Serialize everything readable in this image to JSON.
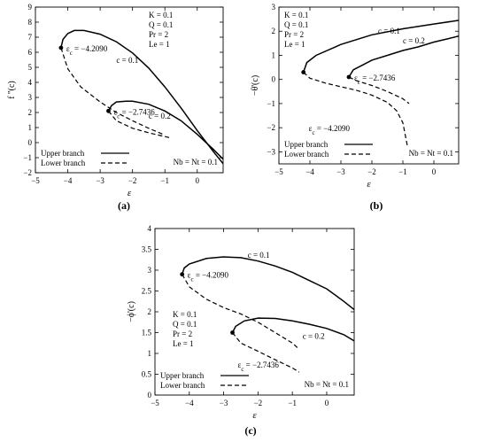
{
  "chart_data": [
    {
      "panel_label": "(a)",
      "type": "line",
      "xlabel": "ε",
      "ylabel": "f ''(c)",
      "xlim": [
        -5,
        0.8
      ],
      "ylim": [
        -2,
        9
      ],
      "xticks": [
        -5,
        -4,
        -3,
        -2,
        -1,
        0
      ],
      "yticks": [
        -2,
        -1,
        0,
        1,
        2,
        3,
        4,
        5,
        6,
        7,
        8,
        9
      ],
      "grid": false,
      "legend_position": "bottom-left",
      "legend": [
        {
          "label": "Upper branch",
          "style": "solid"
        },
        {
          "label": "Lower branch",
          "style": "dashed"
        }
      ],
      "params_text": [
        "K = 0.1",
        "Q = 0.1",
        "Pr = 2",
        "Le = 1"
      ],
      "corner_text": "Nb = Nt = 0.1",
      "annotations": [
        {
          "text": "ε_c = −4.2090",
          "x": -4.209,
          "y": 6.3
        },
        {
          "text": "ε_c = −2.7436",
          "x": -2.7436,
          "y": 2.1
        },
        {
          "text": "c = 0.1",
          "x": -2.5,
          "y": 5.3
        },
        {
          "text": "c = 0.2",
          "x": -1.5,
          "y": 1.6
        }
      ],
      "critical_points": [
        {
          "label": "ε_c = −4.2090",
          "x": -4.209,
          "y": 6.3
        },
        {
          "label": "ε_c = −2.7436",
          "x": -2.7436,
          "y": 2.1
        }
      ],
      "series": [
        {
          "style": "solid",
          "x": [
            -4.209,
            -4.15,
            -4.0,
            -3.8,
            -3.5,
            -3.0,
            -2.5,
            -2.0,
            -1.5,
            -1.0,
            -0.5,
            0.0,
            0.5,
            0.8
          ],
          "y": [
            6.3,
            6.85,
            7.25,
            7.45,
            7.45,
            7.2,
            6.7,
            5.95,
            4.95,
            3.7,
            2.3,
            0.8,
            -0.6,
            -1.4
          ]
        },
        {
          "style": "dashed",
          "x": [
            -4.209,
            -4.0,
            -3.6,
            -3.0,
            -2.5,
            -2.0,
            -1.5,
            -1.0
          ],
          "y": [
            6.3,
            4.9,
            3.7,
            2.7,
            2.0,
            1.45,
            0.95,
            0.5
          ]
        },
        {
          "style": "solid",
          "x": [
            -2.7436,
            -2.65,
            -2.5,
            -2.2,
            -2.0,
            -1.5,
            -1.0,
            -0.5,
            0.0,
            0.5,
            0.8
          ],
          "y": [
            2.1,
            2.45,
            2.7,
            2.75,
            2.75,
            2.55,
            2.1,
            1.45,
            0.55,
            -0.45,
            -1.1
          ]
        },
        {
          "style": "dashed",
          "x": [
            -2.7436,
            -2.5,
            -2.0,
            -1.5,
            -1.0,
            -0.8
          ],
          "y": [
            2.1,
            1.45,
            0.95,
            0.65,
            0.4,
            0.3
          ]
        }
      ]
    },
    {
      "panel_label": "(b)",
      "type": "line",
      "xlabel": "ε",
      "ylabel": "−θ'(c)",
      "xlim": [
        -5,
        0.8
      ],
      "ylim": [
        -3.5,
        3
      ],
      "xticks": [
        -5,
        -4,
        -3,
        -2,
        -1,
        0
      ],
      "yticks": [
        -3,
        -2,
        -1,
        0,
        1,
        2,
        3
      ],
      "grid": false,
      "legend_position": "bottom-left",
      "legend": [
        {
          "label": "Upper branch",
          "style": "solid"
        },
        {
          "label": "Lower branch",
          "style": "dashed"
        }
      ],
      "params_text": [
        "K = 0.1",
        "Q = 0.1",
        "Pr = 2",
        "Le = 1"
      ],
      "corner_text": "Nb = Nt = 0.1",
      "annotations": [
        {
          "text": "ε_c = −4.2090",
          "x": -4.209,
          "y": -2.0
        },
        {
          "text": "ε_c = −2.7436",
          "x": -2.7436,
          "y": 0.1
        },
        {
          "text": "c = 0.1",
          "x": -1.8,
          "y": 1.9
        },
        {
          "text": "c = 0.2",
          "x": -1.0,
          "y": 1.5
        }
      ],
      "critical_points": [
        {
          "label": "ε_c = −4.2090",
          "x": -4.209,
          "y": 0.3
        },
        {
          "label": "ε_c = −2.7436",
          "x": -2.7436,
          "y": 0.1
        }
      ],
      "series": [
        {
          "style": "solid",
          "x": [
            -4.209,
            -4.1,
            -3.8,
            -3.0,
            -2.0,
            -1.0,
            0.0,
            0.8
          ],
          "y": [
            0.3,
            0.7,
            1.0,
            1.45,
            1.85,
            2.1,
            2.3,
            2.45
          ]
        },
        {
          "style": "dashed",
          "x": [
            -4.209,
            -4.0,
            -3.5,
            -3.0,
            -2.5,
            -2.0,
            -1.5,
            -1.2,
            -1.0,
            -0.85
          ],
          "y": [
            0.3,
            0.05,
            -0.15,
            -0.3,
            -0.45,
            -0.65,
            -0.95,
            -1.3,
            -1.8,
            -2.8
          ]
        },
        {
          "style": "solid",
          "x": [
            -2.7436,
            -2.6,
            -2.3,
            -2.0,
            -1.5,
            -1.0,
            -0.5,
            0.0,
            0.5,
            0.8
          ],
          "y": [
            0.1,
            0.4,
            0.6,
            0.8,
            1.0,
            1.2,
            1.35,
            1.55,
            1.7,
            1.8
          ]
        },
        {
          "style": "dashed",
          "x": [
            -2.7436,
            -2.5,
            -2.0,
            -1.5,
            -1.0,
            -0.8
          ],
          "y": [
            0.1,
            -0.05,
            -0.25,
            -0.5,
            -0.8,
            -1.0
          ]
        }
      ]
    },
    {
      "panel_label": "(c)",
      "type": "line",
      "xlabel": "ε",
      "ylabel": "−ϕ'(c)",
      "xlim": [
        -5,
        0.8
      ],
      "ylim": [
        0,
        4
      ],
      "xticks": [
        -5,
        -4,
        -3,
        -2,
        -1,
        0
      ],
      "yticks": [
        0,
        0.5,
        1,
        1.5,
        2,
        2.5,
        3,
        3.5,
        4
      ],
      "grid": false,
      "legend_position": "bottom-left",
      "legend": [
        {
          "label": "Upper branch",
          "style": "solid"
        },
        {
          "label": "Lower branch",
          "style": "dashed"
        }
      ],
      "params_text": [
        "K = 0.1",
        "Q = 0.1",
        "Pr = 2",
        "Le = 1"
      ],
      "corner_text": "Nb = Nt = 0.1",
      "annotations": [
        {
          "text": "ε_c = −4.2090",
          "x": -4.209,
          "y": 2.9
        },
        {
          "text": "ε_c = −2.7436",
          "x": -2.7436,
          "y": 0.75
        },
        {
          "text": "c = 0.1",
          "x": -2.3,
          "y": 3.3
        },
        {
          "text": "c = 0.2",
          "x": -0.7,
          "y": 1.35
        }
      ],
      "critical_points": [
        {
          "label": "ε_c = −4.2090",
          "x": -4.209,
          "y": 2.9
        },
        {
          "label": "ε_c = −2.7436",
          "x": -2.7436,
          "y": 1.5
        }
      ],
      "series": [
        {
          "style": "solid",
          "x": [
            -4.209,
            -4.15,
            -4.0,
            -3.5,
            -3.0,
            -2.5,
            -2.0,
            -1.5,
            -1.0,
            -0.5,
            0.0,
            0.5,
            0.8
          ],
          "y": [
            2.9,
            3.05,
            3.15,
            3.28,
            3.32,
            3.3,
            3.22,
            3.1,
            2.95,
            2.75,
            2.55,
            2.25,
            2.05
          ]
        },
        {
          "style": "dashed",
          "x": [
            -4.209,
            -4.0,
            -3.5,
            -3.0,
            -2.5,
            -2.0,
            -1.5,
            -1.0,
            -0.8
          ],
          "y": [
            2.9,
            2.6,
            2.3,
            2.1,
            1.95,
            1.75,
            1.5,
            1.25,
            1.1
          ]
        },
        {
          "style": "solid",
          "x": [
            -2.7436,
            -2.65,
            -2.4,
            -2.0,
            -1.5,
            -1.0,
            -0.5,
            0.0,
            0.5,
            0.8
          ],
          "y": [
            1.5,
            1.65,
            1.78,
            1.85,
            1.84,
            1.78,
            1.7,
            1.6,
            1.45,
            1.3
          ]
        },
        {
          "style": "dashed",
          "x": [
            -2.7436,
            -2.5,
            -2.0,
            -1.5,
            -1.0,
            -0.8
          ],
          "y": [
            1.5,
            1.25,
            1.05,
            0.85,
            0.65,
            0.55
          ]
        }
      ]
    }
  ]
}
